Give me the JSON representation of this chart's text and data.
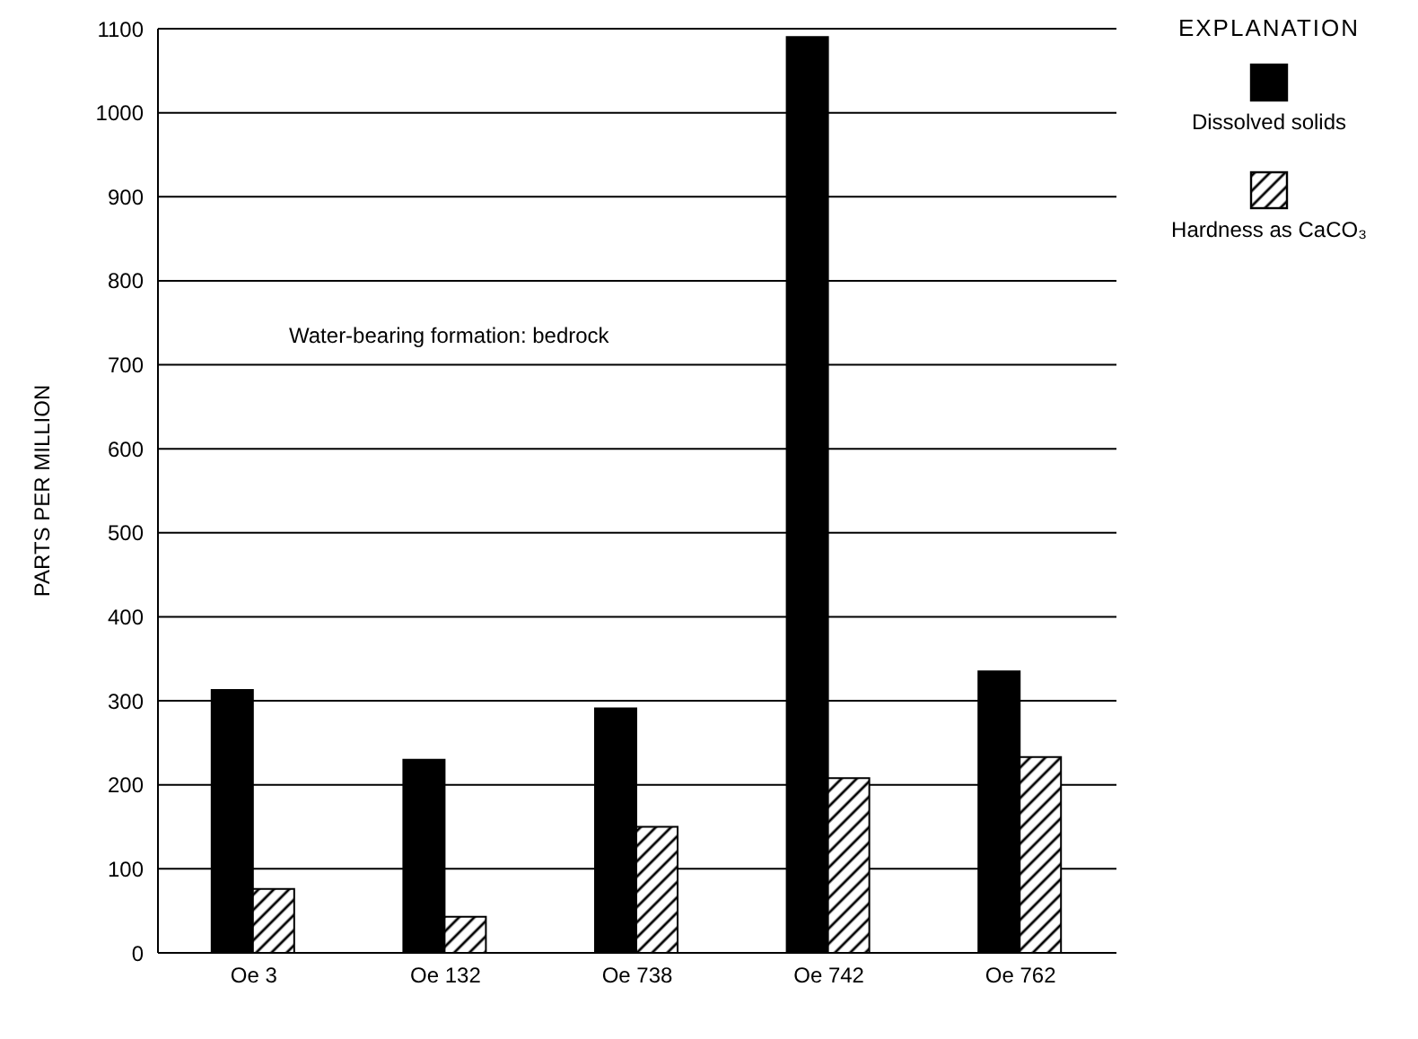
{
  "chart_data": {
    "type": "bar",
    "ylabel": "PARTS PER MILLION",
    "legend_title": "EXPLANATION",
    "categories": [
      "Oe 3",
      "Oe 132",
      "Oe 738",
      "Oe 742",
      "Oe 762"
    ],
    "series": [
      {
        "name": "Dissolved solids",
        "color": "#000000",
        "values": [
          313,
          230,
          291,
          1090,
          335
        ]
      },
      {
        "name": "Hardness as CaCO₃",
        "color": "#000000",
        "values": [
          76,
          43,
          150,
          208,
          233
        ]
      }
    ],
    "ylim": [
      0,
      1100
    ],
    "yticks": [
      0,
      100,
      200,
      300,
      400,
      500,
      600,
      700,
      800,
      900,
      1000,
      1100
    ],
    "grid": "y",
    "legend": "top right",
    "annotations": [
      "Water-bearing formation: bedrock"
    ]
  }
}
